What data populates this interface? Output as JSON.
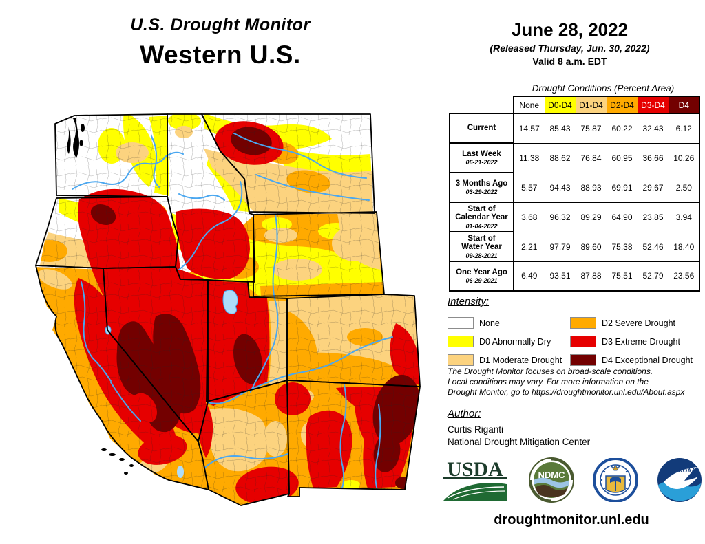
{
  "header": {
    "title_line1": "U.S. Drought Monitor",
    "title_line2": "Western U.S.",
    "date": "June 28, 2022",
    "released": "(Released Thursday, Jun. 30, 2022)",
    "valid": "Valid 8 a.m. EDT"
  },
  "table": {
    "title": "Drought Conditions (Percent Area)",
    "columns": [
      {
        "label": "None",
        "bg": "#FFFFFF",
        "fg": "#000000"
      },
      {
        "label": "D0-D4",
        "bg": "#FFFF00",
        "fg": "#000000"
      },
      {
        "label": "D1-D4",
        "bg": "#FCD37F",
        "fg": "#000000"
      },
      {
        "label": "D2-D4",
        "bg": "#FFAA00",
        "fg": "#000000"
      },
      {
        "label": "D3-D4",
        "bg": "#E60000",
        "fg": "#FFFFFF"
      },
      {
        "label": "D4",
        "bg": "#730000",
        "fg": "#FFFFFF"
      }
    ],
    "rows": [
      {
        "label": "Current",
        "sublabel": "",
        "values": [
          "14.57",
          "85.43",
          "75.87",
          "60.22",
          "32.43",
          "6.12"
        ]
      },
      {
        "label": "Last Week",
        "sublabel": "06-21-2022",
        "values": [
          "11.38",
          "88.62",
          "76.84",
          "60.95",
          "36.66",
          "10.26"
        ]
      },
      {
        "label": "3 Months Ago",
        "sublabel": "03-29-2022",
        "values": [
          "5.57",
          "94.43",
          "88.93",
          "69.91",
          "29.67",
          "2.50"
        ]
      },
      {
        "label": "Start of\nCalendar Year",
        "sublabel": "01-04-2022",
        "values": [
          "3.68",
          "96.32",
          "89.29",
          "64.90",
          "23.85",
          "3.94"
        ]
      },
      {
        "label": "Start of\nWater Year",
        "sublabel": "09-28-2021",
        "values": [
          "2.21",
          "97.79",
          "89.60",
          "75.38",
          "52.46",
          "18.40"
        ]
      },
      {
        "label": "One Year Ago",
        "sublabel": "06-29-2021",
        "values": [
          "6.49",
          "93.51",
          "87.88",
          "75.51",
          "52.79",
          "23.56"
        ]
      }
    ]
  },
  "legend": {
    "heading": "Intensity:",
    "items": [
      {
        "label": "None",
        "color": "#FFFFFF"
      },
      {
        "label": "D0 Abnormally Dry",
        "color": "#FFFF00"
      },
      {
        "label": "D1 Moderate Drought",
        "color": "#FCD37F"
      },
      {
        "label": "D2 Severe Drought",
        "color": "#FFAA00"
      },
      {
        "label": "D3 Extreme Drought",
        "color": "#E60000"
      },
      {
        "label": "D4 Exceptional Drought",
        "color": "#730000"
      }
    ]
  },
  "notes": {
    "disclaimer_line1": "The Drought Monitor focuses on broad-scale conditions.",
    "disclaimer_line2": "Local conditions may vary. For more information on the",
    "disclaimer_line3": "Drought Monitor, go to https://droughtmonitor.unl.edu/About.aspx",
    "author_heading": "Author:",
    "author_name": "Curtis Riganti",
    "author_org": "National Drought Mitigation Center",
    "url": "droughtmonitor.unl.edu"
  },
  "logos": {
    "usda": "USDA",
    "ndmc": "NDMC",
    "doc": "DOC",
    "noaa": "NOAA"
  },
  "colors": {
    "none": "#FFFFFF",
    "d0": "#FFFF00",
    "d1": "#FCD37F",
    "d2": "#FFAA00",
    "d3": "#E60000",
    "d4": "#730000",
    "river": "#4AA7F0",
    "lake": "#ADDCFA"
  },
  "chart_data": {
    "type": "table",
    "title": "Drought Conditions (Percent Area) — Western U.S., June 28, 2022",
    "categories": [
      "None",
      "D0-D4",
      "D1-D4",
      "D2-D4",
      "D3-D4",
      "D4"
    ],
    "series": [
      {
        "name": "Current",
        "values": [
          14.57,
          85.43,
          75.87,
          60.22,
          32.43,
          6.12
        ]
      },
      {
        "name": "Last Week 06-21-2022",
        "values": [
          11.38,
          88.62,
          76.84,
          60.95,
          36.66,
          10.26
        ]
      },
      {
        "name": "3 Months Ago 03-29-2022",
        "values": [
          5.57,
          94.43,
          88.93,
          69.91,
          29.67,
          2.5
        ]
      },
      {
        "name": "Start of Calendar Year 01-04-2022",
        "values": [
          3.68,
          96.32,
          89.29,
          64.9,
          23.85,
          3.94
        ]
      },
      {
        "name": "Start of Water Year 09-28-2021",
        "values": [
          2.21,
          97.79,
          89.6,
          75.38,
          52.46,
          18.4
        ]
      },
      {
        "name": "One Year Ago 06-29-2021",
        "values": [
          6.49,
          93.51,
          87.88,
          75.51,
          52.79,
          23.56
        ]
      }
    ]
  }
}
